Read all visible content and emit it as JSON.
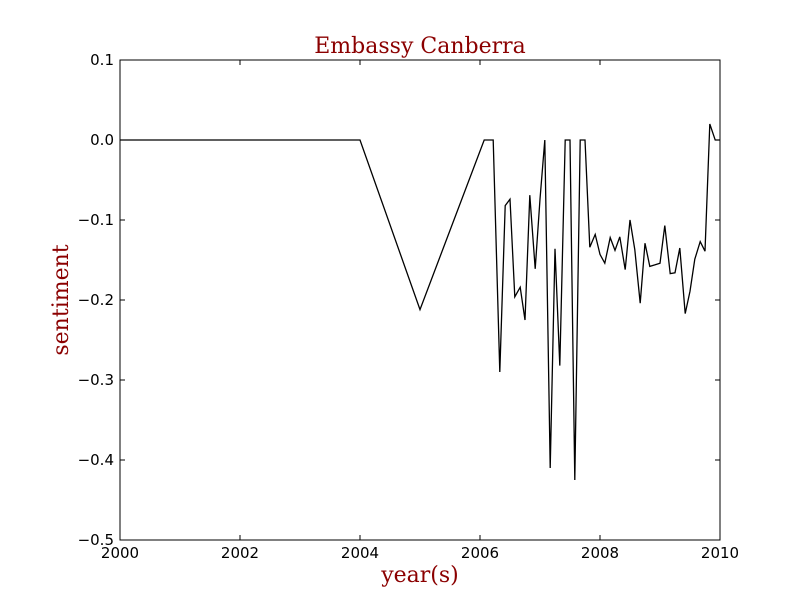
{
  "chart_data": {
    "type": "line",
    "title": "Embassy Canberra",
    "xlabel": "year(s)",
    "ylabel": "sentiment",
    "xlim": [
      2000,
      2010
    ],
    "ylim": [
      -0.5,
      0.1
    ],
    "xticks": [
      2000,
      2002,
      2004,
      2006,
      2008,
      2010
    ],
    "yticks": [
      0.1,
      0.0,
      -0.1,
      -0.2,
      -0.3,
      -0.4,
      -0.5
    ],
    "xtick_labels": [
      "2000",
      "2002",
      "2004",
      "2006",
      "2008",
      "2010"
    ],
    "ytick_labels": [
      "0.1",
      "0.0",
      "−0.1",
      "−0.2",
      "−0.3",
      "−0.4",
      "−0.5"
    ],
    "grid": false,
    "legend": false,
    "label_color": "#8b0000",
    "line_color": "#000000",
    "series": [
      {
        "x": [
          2000.0,
          2004.0,
          2005.0,
          2006.07,
          2006.22,
          2006.33,
          2006.42,
          2006.5,
          2006.58,
          2006.67,
          2006.75,
          2006.83,
          2006.92,
          2007.0,
          2007.08,
          2007.17,
          2007.25,
          2007.33,
          2007.42,
          2007.5,
          2007.58,
          2007.67,
          2007.75,
          2007.83,
          2007.92,
          2008.0,
          2008.08,
          2008.17,
          2008.25,
          2008.33,
          2008.42,
          2008.5,
          2008.58,
          2008.67,
          2008.75,
          2008.83,
          2008.92,
          2009.0,
          2009.08,
          2009.17,
          2009.25,
          2009.33,
          2009.42,
          2009.5,
          2009.58,
          2009.67,
          2009.75,
          2009.83,
          2009.92,
          2010.0
        ],
        "y": [
          0.0,
          0.0,
          -0.212,
          0.0,
          0.0,
          -0.29,
          -0.082,
          -0.074,
          -0.196,
          -0.184,
          -0.225,
          -0.069,
          -0.161,
          -0.074,
          0.0,
          -0.41,
          -0.136,
          -0.282,
          0.0,
          0.0,
          -0.425,
          0.0,
          0.0,
          -0.134,
          -0.118,
          -0.143,
          -0.154,
          -0.122,
          -0.138,
          -0.121,
          -0.162,
          -0.1,
          -0.137,
          -0.204,
          -0.129,
          -0.158,
          -0.156,
          -0.154,
          -0.107,
          -0.167,
          -0.166,
          -0.135,
          -0.217,
          -0.189,
          -0.149,
          -0.127,
          -0.139,
          0.02,
          0.0,
          0.0
        ]
      }
    ]
  }
}
